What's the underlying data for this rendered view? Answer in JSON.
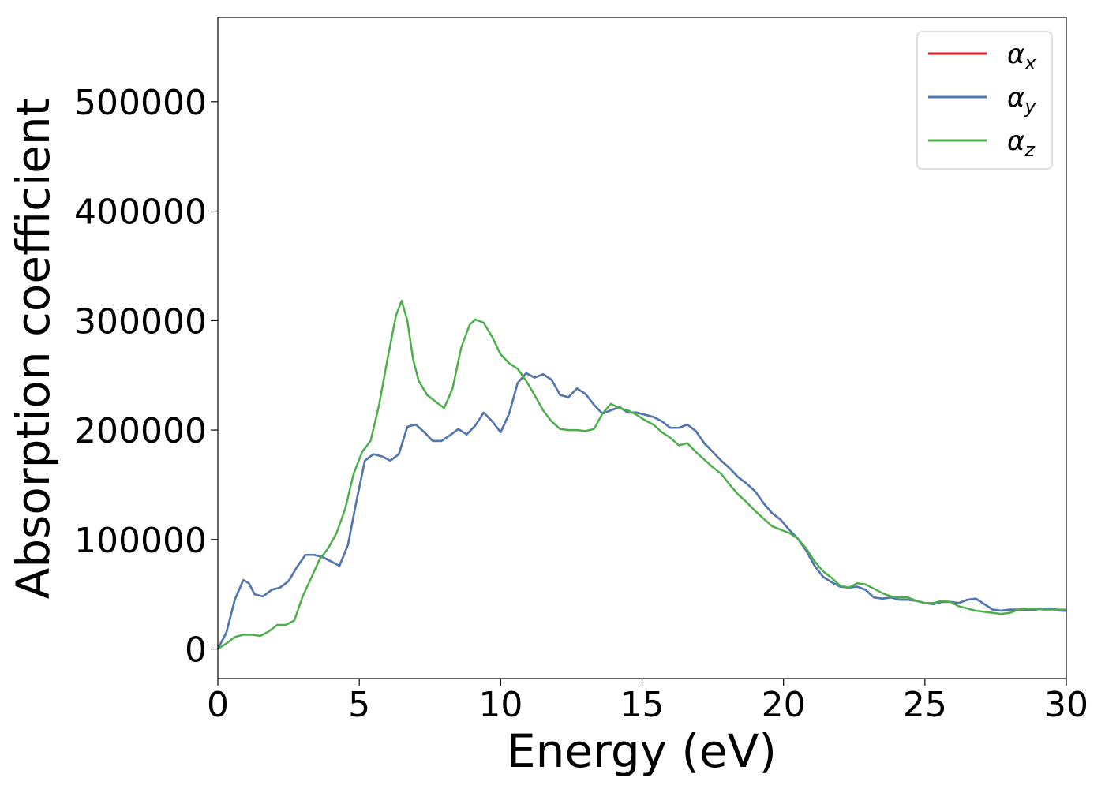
{
  "chart_data": {
    "type": "line",
    "title": "",
    "xlabel": "Energy (eV)",
    "ylabel": "Absorption coefficient",
    "xlim": [
      0,
      30
    ],
    "ylim": [
      -27000,
      577000
    ],
    "xticks": [
      0,
      5,
      10,
      15,
      20,
      25,
      30
    ],
    "yticks": [
      0,
      100000,
      200000,
      300000,
      400000,
      500000
    ],
    "grid": false,
    "legend_position": "top-right",
    "series": [
      {
        "name": "α_x",
        "label_base": "α",
        "label_sub": "x",
        "color": "#e41a1c",
        "x": [
          0,
          0.3,
          0.6,
          0.9,
          1.1,
          1.3,
          1.6,
          1.9,
          2.2,
          2.5,
          2.8,
          3.1,
          3.4,
          3.7,
          4.0,
          4.3,
          4.6,
          4.9,
          5.2,
          5.5,
          5.8,
          6.1,
          6.4,
          6.7,
          7.0,
          7.3,
          7.6,
          7.9,
          8.2,
          8.5,
          8.8,
          9.1,
          9.4,
          9.7,
          10.0,
          10.3,
          10.6,
          10.9,
          11.2,
          11.5,
          11.8,
          12.1,
          12.4,
          12.7,
          13.0,
          13.3,
          13.6,
          13.9,
          14.2,
          14.5,
          14.8,
          15.1,
          15.4,
          15.7,
          16.0,
          16.3,
          16.6,
          16.9,
          17.2,
          17.5,
          17.8,
          18.1,
          18.4,
          18.7,
          19.0,
          19.3,
          19.6,
          19.9,
          20.2,
          20.5,
          20.8,
          21.1,
          21.4,
          21.7,
          22.0,
          22.3,
          22.6,
          22.9,
          23.2,
          23.5,
          23.8,
          24.1,
          24.4,
          24.7,
          25.0,
          25.3,
          25.6,
          25.9,
          26.2,
          26.5,
          26.8,
          27.1,
          27.4,
          27.7,
          28.0,
          28.3,
          28.6,
          28.9,
          29.2,
          29.5,
          29.8,
          30.0
        ],
        "y": [
          0,
          15000,
          45000,
          63000,
          60000,
          50000,
          48000,
          54000,
          56000,
          62000,
          75000,
          86000,
          86000,
          84000,
          80000,
          76000,
          95000,
          135000,
          172000,
          178000,
          176000,
          172000,
          178000,
          203000,
          205000,
          198000,
          190000,
          190000,
          195000,
          201000,
          196000,
          204000,
          216000,
          208000,
          198000,
          215000,
          243000,
          252000,
          248000,
          251000,
          246000,
          232000,
          230000,
          238000,
          233000,
          223000,
          215000,
          218000,
          221000,
          216000,
          216000,
          214000,
          212000,
          208000,
          202000,
          202000,
          205000,
          199000,
          188000,
          180000,
          172000,
          165000,
          157000,
          151000,
          144000,
          133000,
          124000,
          118000,
          109000,
          101000,
          90000,
          76000,
          66000,
          61000,
          57000,
          56000,
          57000,
          54000,
          47000,
          46000,
          47000,
          45000,
          45000,
          44000,
          42000,
          41000,
          43000,
          43000,
          42000,
          45000,
          46000,
          41000,
          36000,
          35000,
          36000,
          36000,
          36000,
          36000,
          37000,
          37000,
          35000,
          35000
        ],
        "line_width": 2.5
      },
      {
        "name": "α_y",
        "label_base": "α",
        "label_sub": "y",
        "color": "#4a7ab5",
        "x": [
          0,
          0.3,
          0.6,
          0.9,
          1.1,
          1.3,
          1.6,
          1.9,
          2.2,
          2.5,
          2.8,
          3.1,
          3.4,
          3.7,
          4.0,
          4.3,
          4.6,
          4.9,
          5.2,
          5.5,
          5.8,
          6.1,
          6.4,
          6.7,
          7.0,
          7.3,
          7.6,
          7.9,
          8.2,
          8.5,
          8.8,
          9.1,
          9.4,
          9.7,
          10.0,
          10.3,
          10.6,
          10.9,
          11.2,
          11.5,
          11.8,
          12.1,
          12.4,
          12.7,
          13.0,
          13.3,
          13.6,
          13.9,
          14.2,
          14.5,
          14.8,
          15.1,
          15.4,
          15.7,
          16.0,
          16.3,
          16.6,
          16.9,
          17.2,
          17.5,
          17.8,
          18.1,
          18.4,
          18.7,
          19.0,
          19.3,
          19.6,
          19.9,
          20.2,
          20.5,
          20.8,
          21.1,
          21.4,
          21.7,
          22.0,
          22.3,
          22.6,
          22.9,
          23.2,
          23.5,
          23.8,
          24.1,
          24.4,
          24.7,
          25.0,
          25.3,
          25.6,
          25.9,
          26.2,
          26.5,
          26.8,
          27.1,
          27.4,
          27.7,
          28.0,
          28.3,
          28.6,
          28.9,
          29.2,
          29.5,
          29.8,
          30.0
        ],
        "y": [
          0,
          15000,
          45000,
          63000,
          60000,
          50000,
          48000,
          54000,
          56000,
          62000,
          75000,
          86000,
          86000,
          84000,
          80000,
          76000,
          95000,
          135000,
          172000,
          178000,
          176000,
          172000,
          178000,
          203000,
          205000,
          198000,
          190000,
          190000,
          195000,
          201000,
          196000,
          204000,
          216000,
          208000,
          198000,
          215000,
          243000,
          252000,
          248000,
          251000,
          246000,
          232000,
          230000,
          238000,
          233000,
          223000,
          215000,
          218000,
          221000,
          216000,
          216000,
          214000,
          212000,
          208000,
          202000,
          202000,
          205000,
          199000,
          188000,
          180000,
          172000,
          165000,
          157000,
          151000,
          144000,
          133000,
          124000,
          118000,
          109000,
          101000,
          90000,
          76000,
          66000,
          61000,
          57000,
          56000,
          57000,
          54000,
          47000,
          46000,
          47000,
          45000,
          45000,
          44000,
          42000,
          41000,
          43000,
          43000,
          42000,
          45000,
          46000,
          41000,
          36000,
          35000,
          36000,
          36000,
          36000,
          36000,
          37000,
          37000,
          35000,
          35000
        ],
        "line_width": 2.5
      },
      {
        "name": "α_z",
        "label_base": "α",
        "label_sub": "z",
        "color": "#4daf4a",
        "x": [
          0,
          0.3,
          0.6,
          0.9,
          1.2,
          1.5,
          1.8,
          2.1,
          2.4,
          2.7,
          3.0,
          3.3,
          3.6,
          3.9,
          4.2,
          4.5,
          4.8,
          5.1,
          5.4,
          5.7,
          6.0,
          6.3,
          6.5,
          6.7,
          6.9,
          7.1,
          7.4,
          7.7,
          8.0,
          8.3,
          8.6,
          8.9,
          9.1,
          9.4,
          9.7,
          10.0,
          10.3,
          10.6,
          10.9,
          11.2,
          11.5,
          11.8,
          12.1,
          12.4,
          12.7,
          13.0,
          13.3,
          13.6,
          13.9,
          14.2,
          14.5,
          14.8,
          15.1,
          15.4,
          15.7,
          16.0,
          16.3,
          16.6,
          16.9,
          17.2,
          17.5,
          17.8,
          18.1,
          18.4,
          18.7,
          19.0,
          19.3,
          19.6,
          19.9,
          20.2,
          20.5,
          20.8,
          21.1,
          21.4,
          21.7,
          22.0,
          22.3,
          22.6,
          22.9,
          23.2,
          23.5,
          23.8,
          24.1,
          24.4,
          24.7,
          25.0,
          25.3,
          25.6,
          25.9,
          26.2,
          26.5,
          26.8,
          27.1,
          27.4,
          27.7,
          28.0,
          28.3,
          28.6,
          28.9,
          29.2,
          29.5,
          29.8,
          30.0
        ],
        "y": [
          0,
          5000,
          11000,
          13000,
          13000,
          12000,
          16000,
          22000,
          22000,
          26000,
          48000,
          65000,
          82000,
          92000,
          106000,
          128000,
          160000,
          180000,
          190000,
          223000,
          265000,
          305000,
          318000,
          300000,
          265000,
          245000,
          232000,
          226000,
          220000,
          238000,
          275000,
          296000,
          301000,
          298000,
          285000,
          269000,
          261000,
          256000,
          245000,
          232000,
          218000,
          208000,
          201000,
          200000,
          200000,
          199000,
          201000,
          215000,
          224000,
          220000,
          218000,
          214000,
          209000,
          205000,
          198000,
          193000,
          186000,
          188000,
          180000,
          173000,
          166000,
          160000,
          150000,
          141000,
          134000,
          126000,
          119000,
          112000,
          109000,
          106000,
          101000,
          92000,
          80000,
          71000,
          65000,
          58000,
          56000,
          60000,
          59000,
          55000,
          51000,
          48000,
          47000,
          47000,
          44000,
          42000,
          42000,
          44000,
          43000,
          39000,
          37000,
          35000,
          34000,
          33000,
          32000,
          33000,
          36000,
          37000,
          37000,
          36000,
          36000,
          36000,
          36000
        ]
      }
    ]
  }
}
